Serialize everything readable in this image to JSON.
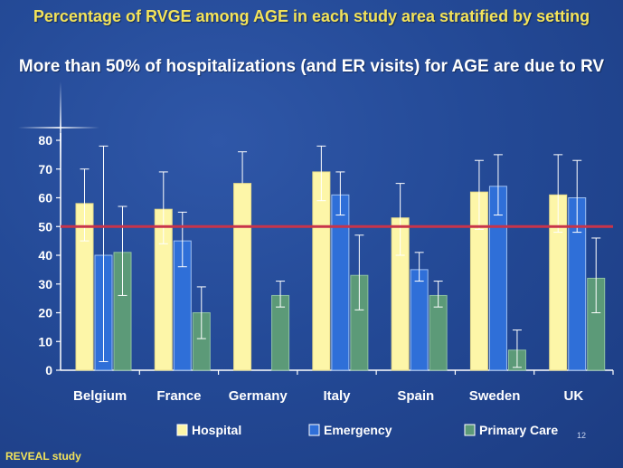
{
  "title": "Percentage of RVGE among AGE in each study area stratified by setting",
  "subtitle": "More than 50% of hospitalizations (and ER visits) for AGE are due to RV",
  "footer": "REVEAL study",
  "page_number": "12",
  "colors": {
    "hospital": "#fdf6a8",
    "emergency": "#2f6fd8",
    "primary_care": "#5c9a78",
    "reference_line": "#c8344a",
    "axis": "#ffffff"
  },
  "chart_data": {
    "type": "bar",
    "title": "Percentage of RVGE among AGE in each study area stratified by setting",
    "xlabel": "",
    "ylabel": "",
    "ylim": [
      0,
      80
    ],
    "yticks": [
      0,
      10,
      20,
      30,
      40,
      50,
      60,
      70,
      80
    ],
    "categories": [
      "Belgium",
      "France",
      "Germany",
      "Italy",
      "Spain",
      "Sweden",
      "UK"
    ],
    "reference_line": 50,
    "legend_position": "bottom",
    "series": [
      {
        "name": "Hospital",
        "values": [
          58,
          56,
          65,
          69,
          53,
          62,
          61
        ],
        "ci_low": [
          45,
          44,
          null,
          59,
          40,
          49,
          48
        ],
        "ci_high": [
          70,
          69,
          76,
          78,
          65,
          73,
          75
        ]
      },
      {
        "name": "Emergency",
        "values": [
          40,
          45,
          null,
          61,
          35,
          64,
          60
        ],
        "ci_low": [
          3,
          36,
          null,
          54,
          31,
          54,
          48
        ],
        "ci_high": [
          78,
          55,
          null,
          69,
          41,
          75,
          73
        ]
      },
      {
        "name": "Primary Care",
        "values": [
          41,
          20,
          26,
          33,
          26,
          7,
          32
        ],
        "ci_low": [
          26,
          11,
          22,
          21,
          22,
          1,
          20
        ],
        "ci_high": [
          57,
          29,
          31,
          47,
          31,
          14,
          46
        ]
      }
    ]
  }
}
